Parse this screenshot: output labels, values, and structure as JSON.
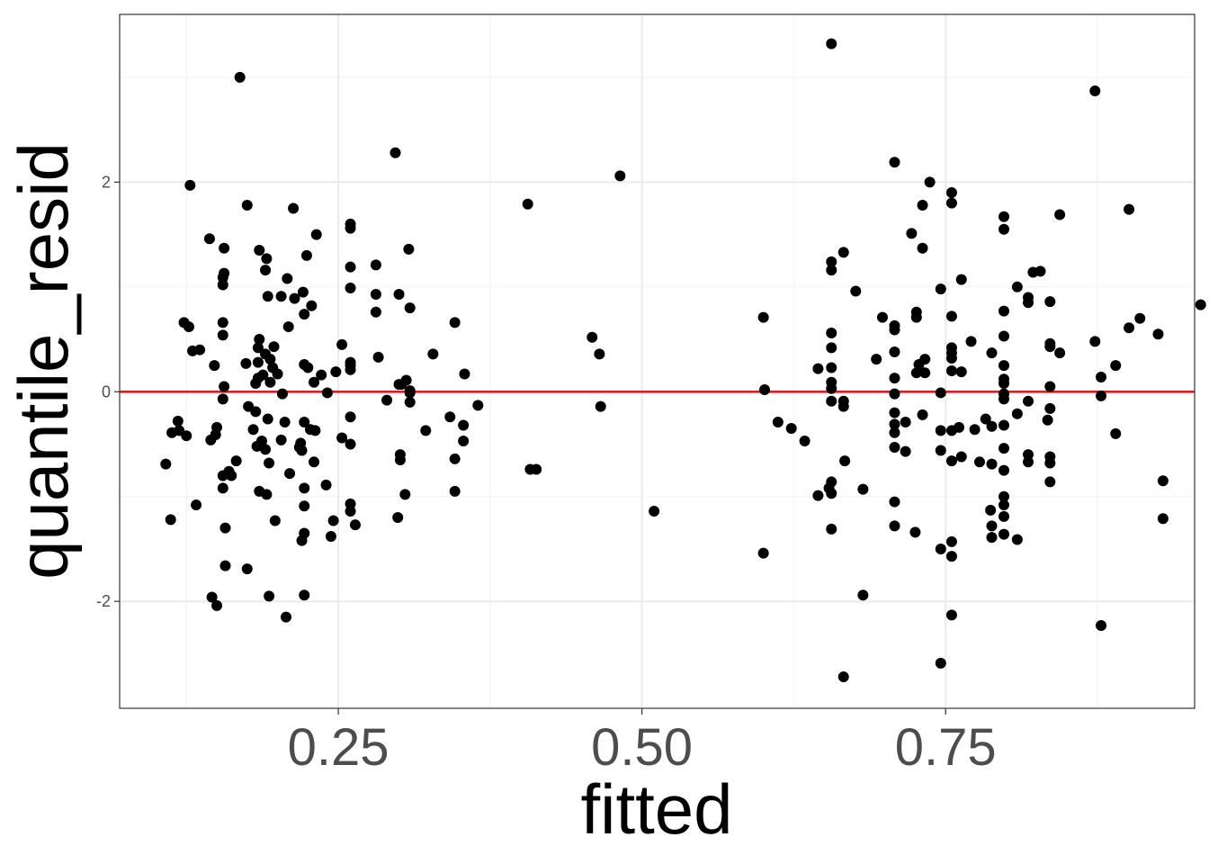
{
  "chart_data": {
    "type": "scatter",
    "title": "",
    "xlabel": "fitted",
    "ylabel": "quantile_resid",
    "xlim": [
      0.07,
      0.955
    ],
    "ylim": [
      -3.02,
      3.6
    ],
    "x_ticks": [
      0.25,
      0.5,
      0.75
    ],
    "x_tick_labels": [
      "0.25",
      "0.50",
      "0.75"
    ],
    "y_ticks": [
      -2,
      0,
      2
    ],
    "y_tick_labels": [
      "-2",
      "0",
      "2"
    ],
    "grid": true,
    "reference_line": {
      "y": 0,
      "color": "#e41a1c"
    },
    "point_color": "#000000",
    "points": [
      [
        0.108,
        -0.69
      ],
      [
        0.112,
        -1.22
      ],
      [
        0.113,
        -0.39
      ],
      [
        0.118,
        -0.28
      ],
      [
        0.119,
        -0.37
      ],
      [
        0.123,
        0.66
      ],
      [
        0.125,
        -0.42
      ],
      [
        0.127,
        0.62
      ],
      [
        0.128,
        1.97
      ],
      [
        0.13,
        0.39
      ],
      [
        0.133,
        -1.08
      ],
      [
        0.136,
        0.4
      ],
      [
        0.144,
        1.46
      ],
      [
        0.145,
        -0.46
      ],
      [
        0.146,
        -1.96
      ],
      [
        0.148,
        0.25
      ],
      [
        0.149,
        -0.41
      ],
      [
        0.15,
        -0.34
      ],
      [
        0.15,
        -2.04
      ],
      [
        0.155,
        -0.07
      ],
      [
        0.155,
        1.02
      ],
      [
        0.155,
        -0.8
      ],
      [
        0.155,
        -0.92
      ],
      [
        0.155,
        0.54
      ],
      [
        0.155,
        0.66
      ],
      [
        0.155,
        1.09
      ],
      [
        0.156,
        1.13
      ],
      [
        0.156,
        1.37
      ],
      [
        0.156,
        0.05
      ],
      [
        0.157,
        -1.66
      ],
      [
        0.157,
        -1.3
      ],
      [
        0.16,
        -0.76
      ],
      [
        0.162,
        -0.8
      ],
      [
        0.166,
        -0.66
      ],
      [
        0.169,
        3.0
      ],
      [
        0.174,
        0.27
      ],
      [
        0.175,
        1.78
      ],
      [
        0.175,
        -1.69
      ],
      [
        0.176,
        -0.14
      ],
      [
        0.18,
        -0.36
      ],
      [
        0.182,
        0.08
      ],
      [
        0.182,
        -0.19
      ],
      [
        0.183,
        -0.52
      ],
      [
        0.184,
        0.13
      ],
      [
        0.184,
        0.28
      ],
      [
        0.184,
        0.42
      ],
      [
        0.185,
        0.5
      ],
      [
        0.185,
        -0.95
      ],
      [
        0.185,
        1.35
      ],
      [
        0.187,
        -0.47
      ],
      [
        0.188,
        0.16
      ],
      [
        0.19,
        1.16
      ],
      [
        0.19,
        0.36
      ],
      [
        0.19,
        -0.55
      ],
      [
        0.191,
        -0.98
      ],
      [
        0.191,
        1.27
      ],
      [
        0.192,
        0.91
      ],
      [
        0.192,
        -0.26
      ],
      [
        0.193,
        -0.68
      ],
      [
        0.193,
        -1.95
      ],
      [
        0.194,
        0.09
      ],
      [
        0.194,
        0.31
      ],
      [
        0.196,
        0.23
      ],
      [
        0.197,
        0.43
      ],
      [
        0.198,
        -1.23
      ],
      [
        0.2,
        0.17
      ],
      [
        0.203,
        -0.46
      ],
      [
        0.203,
        0.91
      ],
      [
        0.204,
        -0.02
      ],
      [
        0.206,
        -0.29
      ],
      [
        0.207,
        -2.15
      ],
      [
        0.208,
        1.08
      ],
      [
        0.209,
        0.62
      ],
      [
        0.21,
        -0.78
      ],
      [
        0.213,
        1.75
      ],
      [
        0.214,
        0.89
      ],
      [
        0.218,
        -0.53
      ],
      [
        0.219,
        -0.49
      ],
      [
        0.22,
        -1.42
      ],
      [
        0.22,
        -0.56
      ],
      [
        0.221,
        0.95
      ],
      [
        0.222,
        0.26
      ],
      [
        0.222,
        0.74
      ],
      [
        0.222,
        -1.94
      ],
      [
        0.222,
        -0.29
      ],
      [
        0.222,
        -0.92
      ],
      [
        0.222,
        -1.35
      ],
      [
        0.222,
        -1.09
      ],
      [
        0.224,
        1.3
      ],
      [
        0.225,
        0.23
      ],
      [
        0.227,
        -0.36
      ],
      [
        0.228,
        0.82
      ],
      [
        0.23,
        -0.67
      ],
      [
        0.23,
        0.09
      ],
      [
        0.231,
        -0.37
      ],
      [
        0.232,
        1.5
      ],
      [
        0.236,
        0.16
      ],
      [
        0.24,
        -0.89
      ],
      [
        0.241,
        -0.01
      ],
      [
        0.244,
        -1.38
      ],
      [
        0.246,
        -1.23
      ],
      [
        0.248,
        0.19
      ],
      [
        0.253,
        0.45
      ],
      [
        0.253,
        -0.44
      ],
      [
        0.26,
        1.6
      ],
      [
        0.26,
        1.56
      ],
      [
        0.26,
        -1.07
      ],
      [
        0.26,
        -1.14
      ],
      [
        0.26,
        0.99
      ],
      [
        0.26,
        0.28
      ],
      [
        0.26,
        0.25
      ],
      [
        0.26,
        0.21
      ],
      [
        0.26,
        -0.24
      ],
      [
        0.26,
        -0.5
      ],
      [
        0.26,
        1.19
      ],
      [
        0.264,
        -1.27
      ],
      [
        0.281,
        1.21
      ],
      [
        0.281,
        0.93
      ],
      [
        0.281,
        0.76
      ],
      [
        0.283,
        0.33
      ],
      [
        0.29,
        -0.08
      ],
      [
        0.297,
        2.28
      ],
      [
        0.299,
        -1.2
      ],
      [
        0.3,
        0.93
      ],
      [
        0.3,
        0.07
      ],
      [
        0.301,
        -0.6
      ],
      [
        0.301,
        -0.65
      ],
      [
        0.302,
        0.07
      ],
      [
        0.305,
        -0.98
      ],
      [
        0.306,
        0.11
      ],
      [
        0.308,
        1.36
      ],
      [
        0.309,
        0.8
      ],
      [
        0.309,
        -0.01
      ],
      [
        0.309,
        0.01
      ],
      [
        0.309,
        -0.1
      ],
      [
        0.322,
        -0.37
      ],
      [
        0.328,
        0.36
      ],
      [
        0.342,
        -0.24
      ],
      [
        0.346,
        0.66
      ],
      [
        0.346,
        -0.64
      ],
      [
        0.346,
        -0.95
      ],
      [
        0.353,
        -0.32
      ],
      [
        0.353,
        -0.47
      ],
      [
        0.354,
        0.17
      ],
      [
        0.365,
        -0.13
      ],
      [
        0.406,
        1.79
      ],
      [
        0.408,
        -0.74
      ],
      [
        0.413,
        -0.74
      ],
      [
        0.459,
        0.52
      ],
      [
        0.465,
        0.36
      ],
      [
        0.466,
        -0.14
      ],
      [
        0.482,
        2.06
      ],
      [
        0.51,
        -1.14
      ],
      [
        0.6,
        0.71
      ],
      [
        0.6,
        -1.54
      ],
      [
        0.601,
        0.02
      ],
      [
        0.612,
        -0.29
      ],
      [
        0.623,
        -0.35
      ],
      [
        0.634,
        -0.47
      ],
      [
        0.645,
        0.22
      ],
      [
        0.645,
        -0.99
      ],
      [
        0.654,
        -0.92
      ],
      [
        0.656,
        -0.97
      ],
      [
        0.656,
        1.24
      ],
      [
        0.656,
        -1.31
      ],
      [
        0.656,
        0.03
      ],
      [
        0.656,
        0.56
      ],
      [
        0.656,
        0.42
      ],
      [
        0.656,
        0.23
      ],
      [
        0.656,
        -0.09
      ],
      [
        0.656,
        0.09
      ],
      [
        0.656,
        1.16
      ],
      [
        0.656,
        -0.86
      ],
      [
        0.656,
        3.32
      ],
      [
        0.666,
        -0.09
      ],
      [
        0.666,
        -0.14
      ],
      [
        0.666,
        -2.72
      ],
      [
        0.666,
        1.33
      ],
      [
        0.667,
        -0.66
      ],
      [
        0.676,
        0.96
      ],
      [
        0.682,
        -0.93
      ],
      [
        0.682,
        -1.94
      ],
      [
        0.693,
        0.31
      ],
      [
        0.698,
        0.71
      ],
      [
        0.708,
        -1.28
      ],
      [
        0.708,
        2.19
      ],
      [
        0.708,
        -1.05
      ],
      [
        0.708,
        0.63
      ],
      [
        0.708,
        0.38
      ],
      [
        0.708,
        -0.2
      ],
      [
        0.708,
        -0.39
      ],
      [
        0.708,
        0.59
      ],
      [
        0.708,
        -0.02
      ],
      [
        0.708,
        -0.31
      ],
      [
        0.708,
        0.13
      ],
      [
        0.708,
        -0.53
      ],
      [
        0.717,
        -0.57
      ],
      [
        0.717,
        -0.29
      ],
      [
        0.722,
        1.51
      ],
      [
        0.725,
        -1.34
      ],
      [
        0.726,
        0.76
      ],
      [
        0.726,
        0.71
      ],
      [
        0.726,
        0.18
      ],
      [
        0.728,
        0.26
      ],
      [
        0.731,
        -0.22
      ],
      [
        0.731,
        1.37
      ],
      [
        0.731,
        1.78
      ],
      [
        0.733,
        0.31
      ],
      [
        0.733,
        0.18
      ],
      [
        0.737,
        2.0
      ],
      [
        0.746,
        -0.01
      ],
      [
        0.746,
        -1.5
      ],
      [
        0.746,
        0.98
      ],
      [
        0.746,
        -0.37
      ],
      [
        0.746,
        -2.59
      ],
      [
        0.746,
        -0.56
      ],
      [
        0.755,
        -0.37
      ],
      [
        0.755,
        -0.66
      ],
      [
        0.755,
        0.72
      ],
      [
        0.755,
        0.42
      ],
      [
        0.755,
        0.37
      ],
      [
        0.755,
        0.32
      ],
      [
        0.755,
        0.2
      ],
      [
        0.755,
        -1.57
      ],
      [
        0.755,
        -2.13
      ],
      [
        0.755,
        1.8
      ],
      [
        0.755,
        1.9
      ],
      [
        0.755,
        -1.43
      ],
      [
        0.761,
        -0.34
      ],
      [
        0.763,
        1.07
      ],
      [
        0.763,
        0.19
      ],
      [
        0.763,
        -0.62
      ],
      [
        0.771,
        0.48
      ],
      [
        0.774,
        -0.36
      ],
      [
        0.778,
        -0.67
      ],
      [
        0.783,
        -0.26
      ],
      [
        0.787,
        -1.13
      ],
      [
        0.788,
        -0.69
      ],
      [
        0.788,
        0.37
      ],
      [
        0.788,
        -1.39
      ],
      [
        0.788,
        -1.28
      ],
      [
        0.788,
        -0.33
      ],
      [
        0.798,
        0.53
      ],
      [
        0.798,
        0.77
      ],
      [
        0.798,
        1.55
      ],
      [
        0.798,
        1.67
      ],
      [
        0.798,
        0.25
      ],
      [
        0.798,
        0.08
      ],
      [
        0.798,
        0.12
      ],
      [
        0.798,
        -0.02
      ],
      [
        0.798,
        -0.07
      ],
      [
        0.798,
        -0.32
      ],
      [
        0.798,
        -0.54
      ],
      [
        0.798,
        -0.75
      ],
      [
        0.798,
        -1.0
      ],
      [
        0.798,
        -1.08
      ],
      [
        0.798,
        -1.19
      ],
      [
        0.798,
        -1.36
      ],
      [
        0.809,
        -1.41
      ],
      [
        0.809,
        1.0
      ],
      [
        0.809,
        -0.21
      ],
      [
        0.818,
        -0.6
      ],
      [
        0.818,
        -0.67
      ],
      [
        0.818,
        0.9
      ],
      [
        0.818,
        0.85
      ],
      [
        0.818,
        -0.09
      ],
      [
        0.822,
        1.14
      ],
      [
        0.828,
        1.15
      ],
      [
        0.834,
        -0.27
      ],
      [
        0.836,
        -0.62
      ],
      [
        0.836,
        -0.68
      ],
      [
        0.836,
        -0.86
      ],
      [
        0.836,
        0.05
      ],
      [
        0.836,
        0.46
      ],
      [
        0.836,
        0.43
      ],
      [
        0.836,
        0.86
      ],
      [
        0.836,
        -0.16
      ],
      [
        0.844,
        0.37
      ],
      [
        0.844,
        1.69
      ],
      [
        0.873,
        0.48
      ],
      [
        0.873,
        2.87
      ],
      [
        0.878,
        -0.04
      ],
      [
        0.878,
        0.14
      ],
      [
        0.878,
        -2.23
      ],
      [
        0.89,
        0.25
      ],
      [
        0.89,
        -0.4
      ],
      [
        0.901,
        0.61
      ],
      [
        0.901,
        1.74
      ],
      [
        0.91,
        0.7
      ],
      [
        0.925,
        0.55
      ],
      [
        0.929,
        -1.21
      ],
      [
        0.929,
        -0.85
      ],
      [
        0.96,
        0.83
      ]
    ]
  }
}
